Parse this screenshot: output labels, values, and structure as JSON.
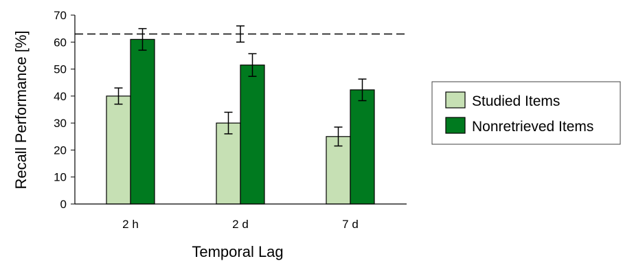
{
  "chart_data": {
    "type": "bar",
    "title": "",
    "xlabel": "Temporal Lag",
    "ylabel": "Recall Performance [%]",
    "ylim": [
      0,
      70
    ],
    "yticks": [
      0,
      10,
      20,
      30,
      40,
      50,
      60,
      70
    ],
    "grid": false,
    "categories": [
      "2 h",
      "2 d",
      "7 d"
    ],
    "series": [
      {
        "name": "Studied Items",
        "color": "#c6e0b4",
        "values": [
          40,
          30,
          25
        ],
        "errors": [
          3,
          4,
          3.5
        ]
      },
      {
        "name": "Nonretrieved Items",
        "color": "#007a1f",
        "values": [
          61,
          51.5,
          42.3
        ],
        "errors": [
          4,
          4.2,
          4
        ]
      }
    ],
    "reference_line": {
      "value": 63,
      "style": "dashed",
      "error": 3,
      "at_category": "2 d"
    },
    "legend": {
      "position": "right"
    }
  }
}
